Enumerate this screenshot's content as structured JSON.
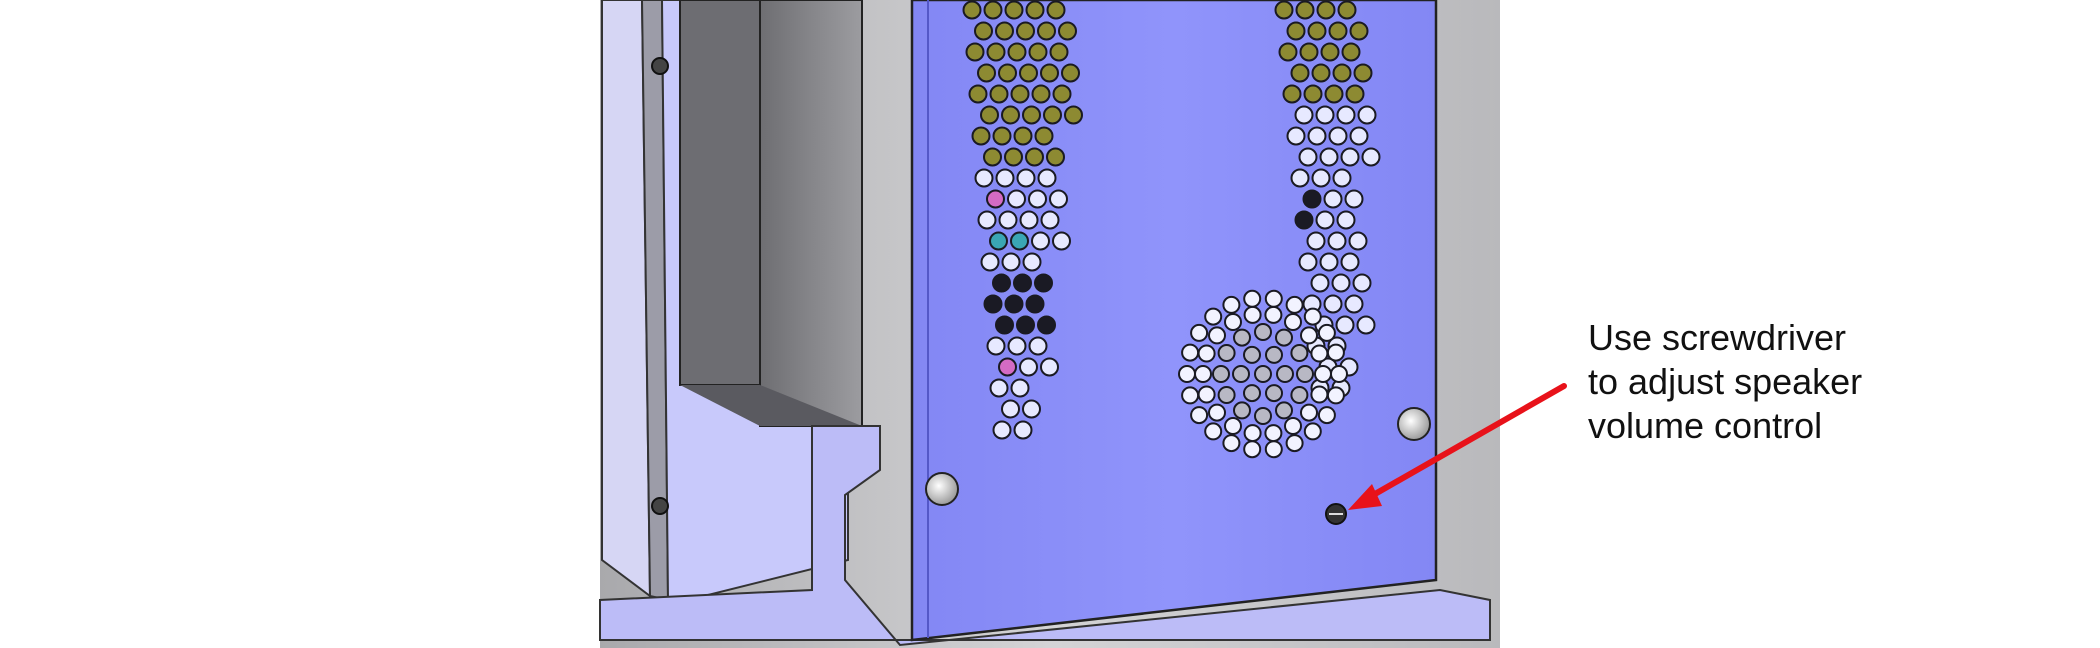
{
  "annotation": {
    "lines": [
      "Use screwdriver",
      "to adjust speaker",
      "volume control"
    ]
  },
  "colors": {
    "panel": "#8a8ef6",
    "panel_shadow": "#7f84e8",
    "hole_olive": "#8d8a32",
    "hole_dark": "#1a1a24",
    "hole_pink": "#d46bc4",
    "hole_teal": "#3aa6b4",
    "arrow": "#e8121a",
    "background_gray": "#c6c6c8"
  },
  "icons": [
    "speaker-grille-icon",
    "volume-control-screw-icon",
    "mounting-screw-icon",
    "arrow-icon"
  ]
}
